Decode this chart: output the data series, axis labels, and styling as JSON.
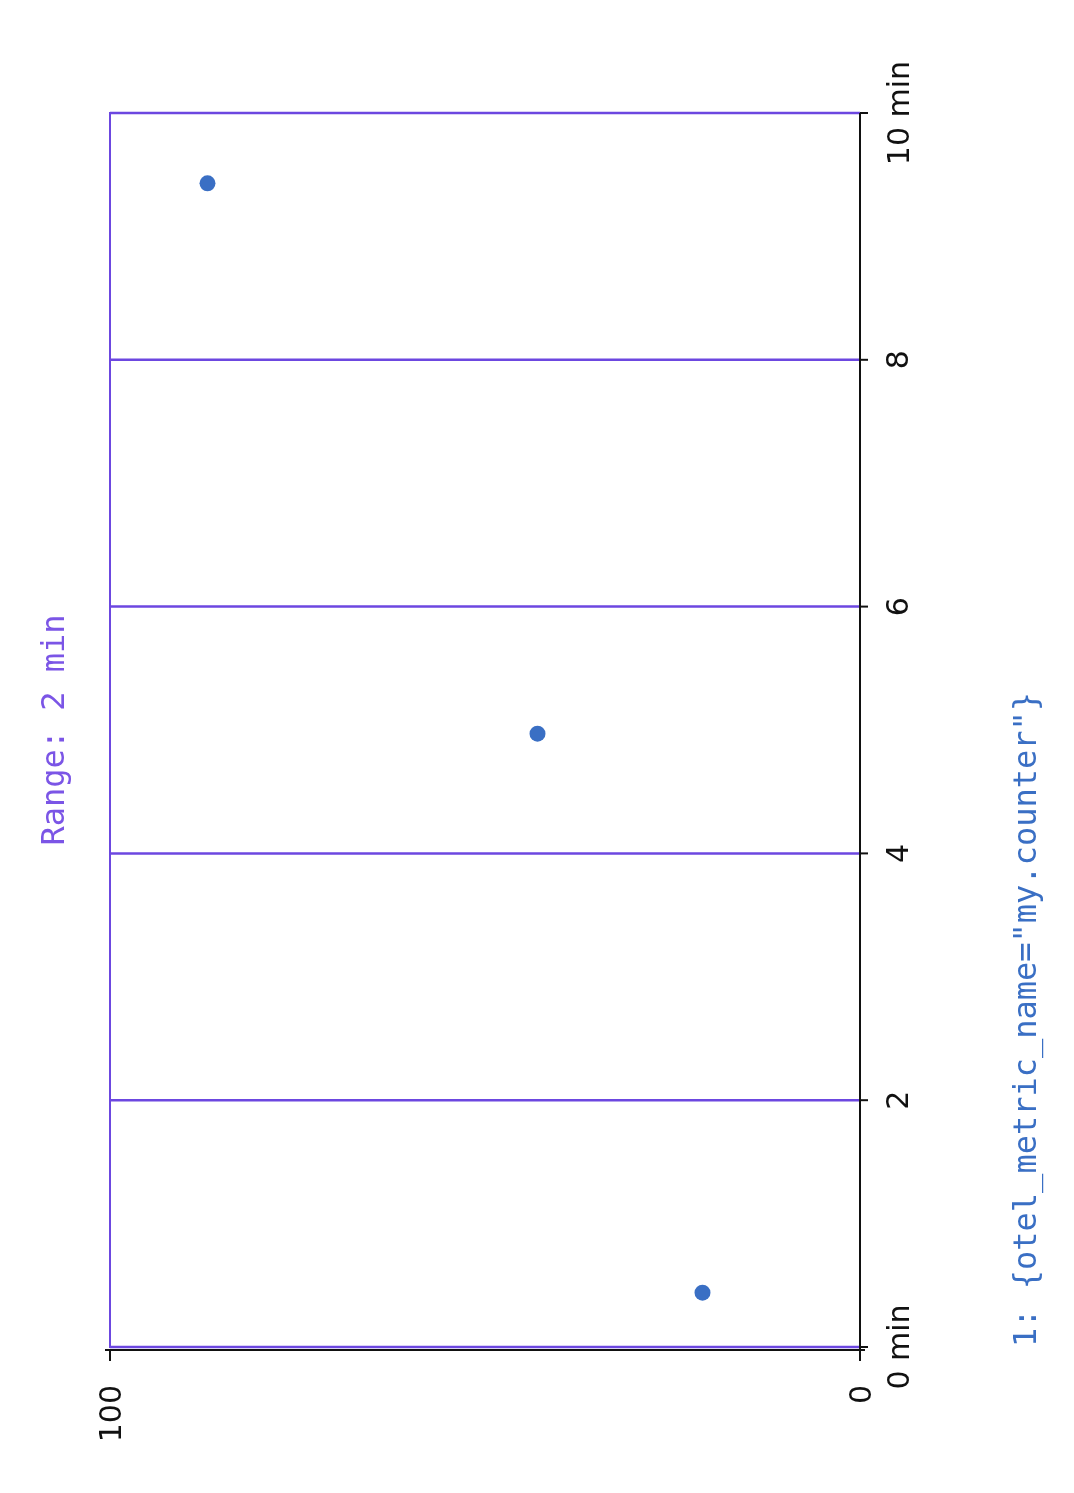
{
  "chart_data": {
    "type": "scatter",
    "title": "Range: 2 min",
    "series": [
      {
        "name": "1: {otel_metric_name=\"my.counter\"}",
        "color": "#3a6fc4",
        "x": [
          21,
          43,
          87
        ],
        "values": [
          0.44,
          4.97,
          9.43
        ]
      }
    ],
    "xlim": [
      100,
      0
    ],
    "xticks": [
      100,
      0
    ],
    "ylim": [
      0,
      10
    ],
    "yticks": [
      {
        "value": 0,
        "label": "0 min"
      },
      2,
      4,
      6,
      8,
      {
        "value": 10,
        "label": "10 min"
      }
    ],
    "grid": "y",
    "legend": "right",
    "marker": "circle"
  }
}
